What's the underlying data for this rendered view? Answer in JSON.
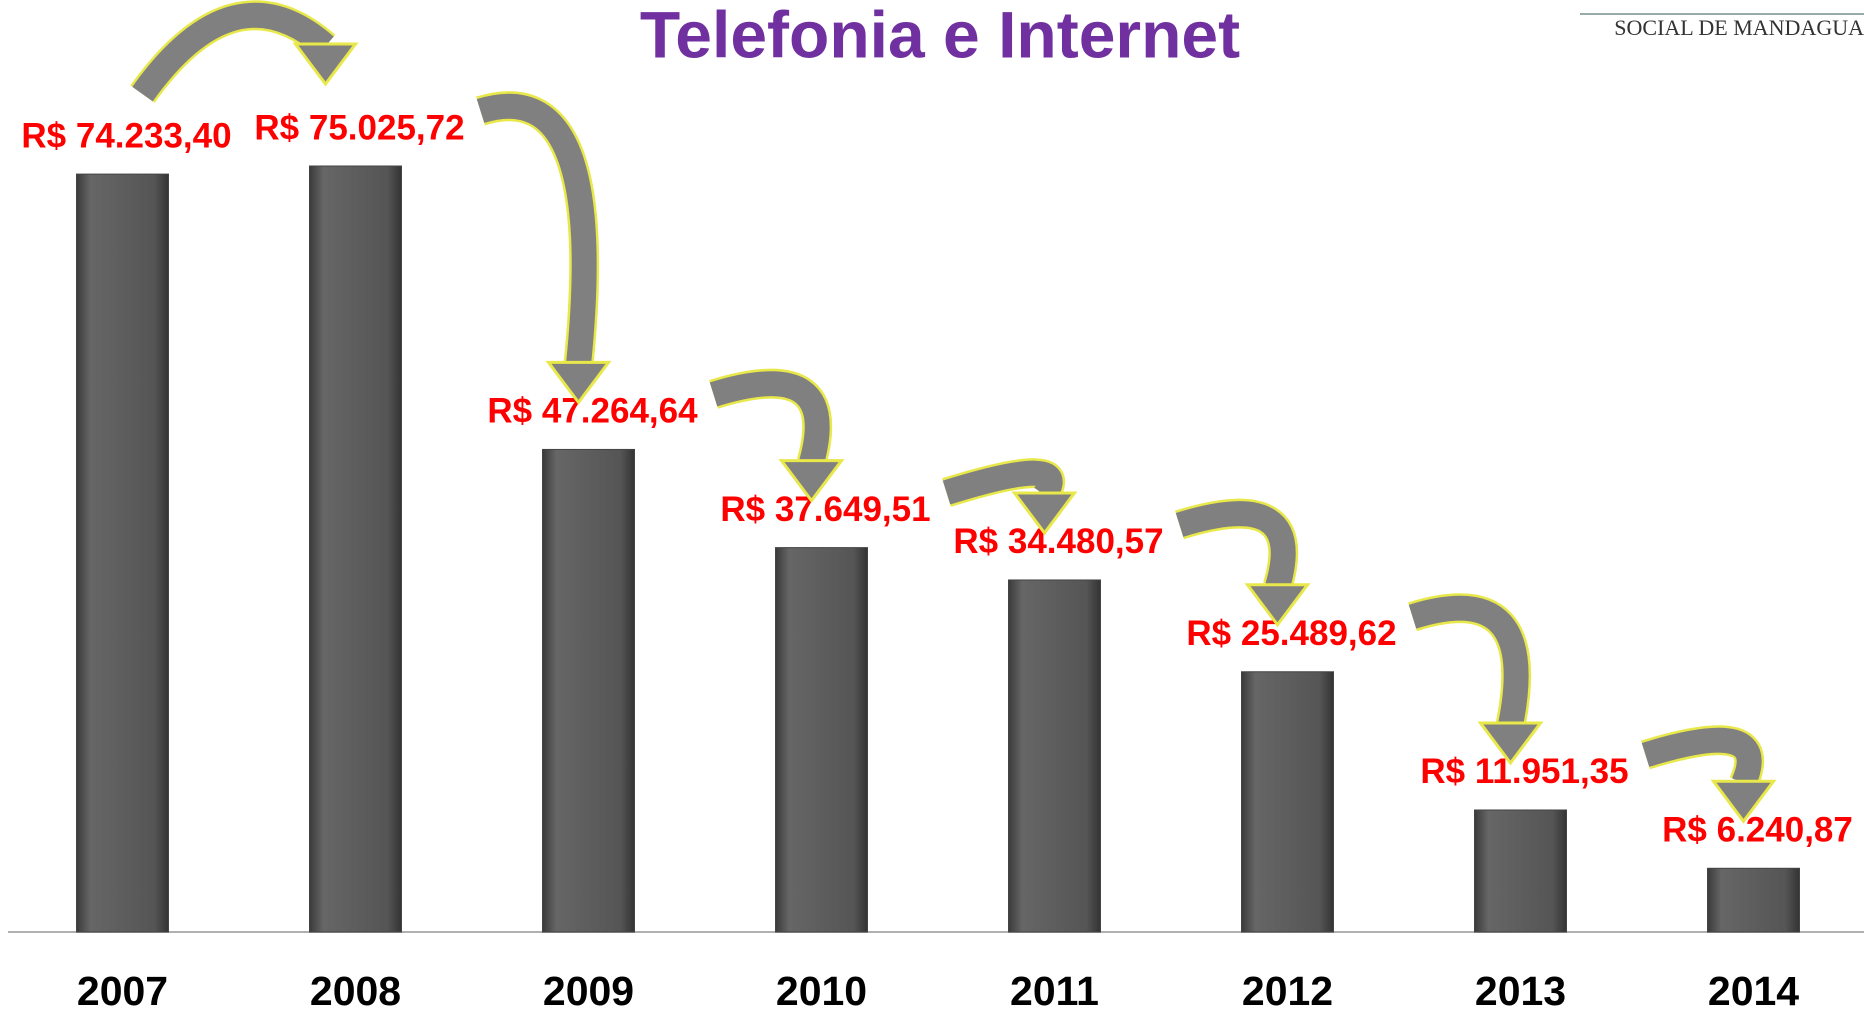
{
  "chart_data": {
    "type": "bar",
    "title": "Telefonia e Internet",
    "logo_text": "SOCIAL DE MANDAGUA",
    "categories": [
      "2007",
      "2008",
      "2009",
      "2010",
      "2011",
      "2012",
      "2013",
      "2014"
    ],
    "values": [
      74233.4,
      75025.72,
      47264.64,
      37649.51,
      34480.57,
      25489.62,
      11951.35,
      6240.87
    ],
    "value_labels": [
      "R$ 74.233,40",
      "R$ 75.025,72",
      "R$ 47.264,64",
      "R$ 37.649,51",
      "R$ 34.480,57",
      "R$ 25.489,62",
      "R$ 11.951,35",
      "R$ 6.240,87"
    ],
    "color": "#5a5a5a",
    "label_color": "#ff0000",
    "title_color": "#7030a0"
  }
}
